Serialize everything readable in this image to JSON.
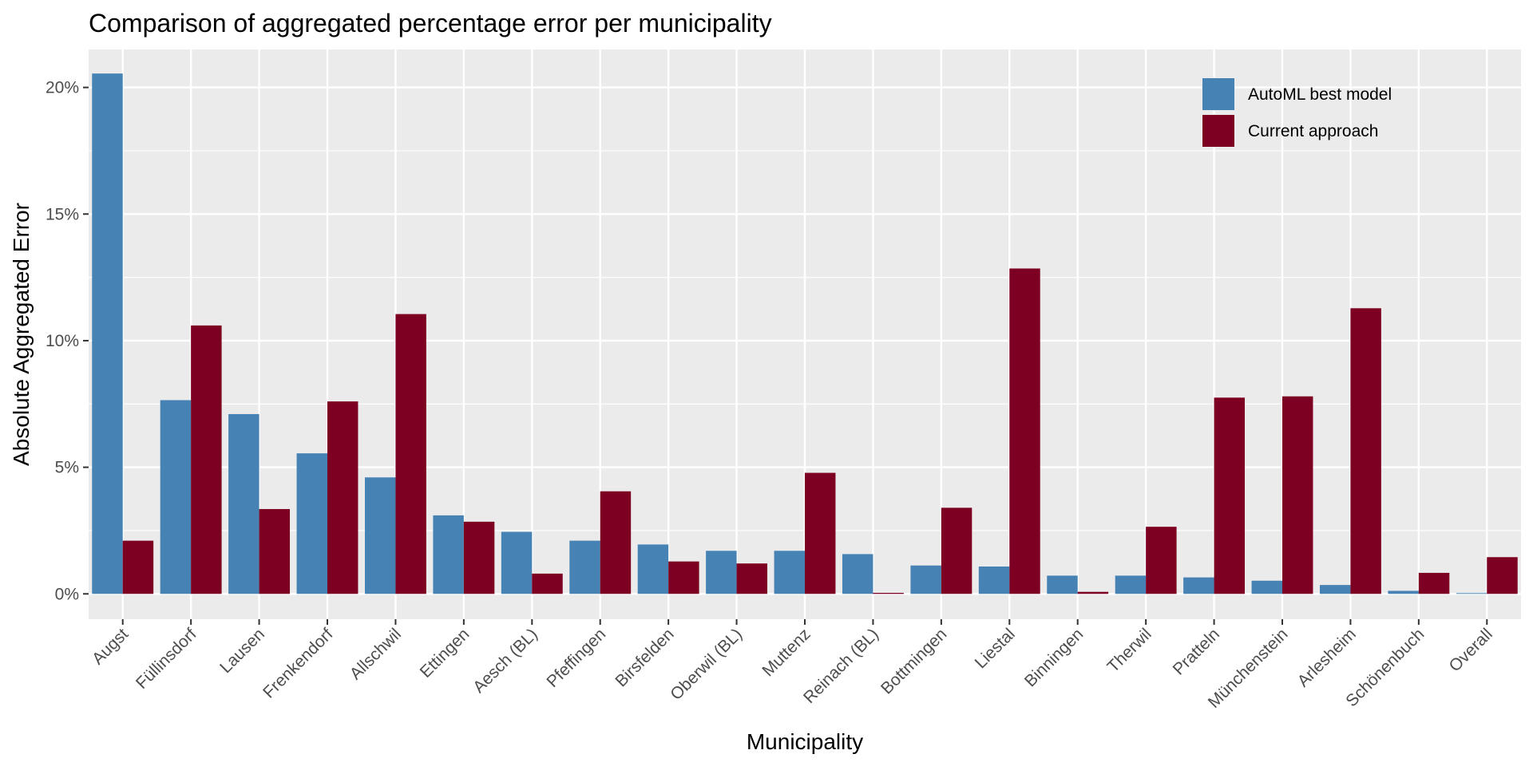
{
  "chart_data": {
    "type": "bar",
    "title": "Comparison of aggregated percentage error per municipality",
    "xlabel": "Municipality",
    "ylabel": "Absolute Aggregated Error",
    "ylim": [
      -0.01,
      0.215
    ],
    "y_ticks": [
      0,
      0.05,
      0.1,
      0.15,
      0.2
    ],
    "y_tick_labels": [
      "0%",
      "5%",
      "10%",
      "15%",
      "20%"
    ],
    "grid": true,
    "legend_position": "top-right",
    "categories": [
      "Augst",
      "Füllinsdorf",
      "Lausen",
      "Frenkendorf",
      "Allschwil",
      "Ettingen",
      "Aesch (BL)",
      "Pfeffingen",
      "Birsfelden",
      "Oberwil (BL)",
      "Muttenz",
      "Reinach (BL)",
      "Bottmingen",
      "Liestal",
      "Binningen",
      "Therwil",
      "Pratteln",
      "Münchenstein",
      "Arlesheim",
      "Schönenbuch",
      "Overall"
    ],
    "series": [
      {
        "name": "AutoML best model",
        "color": "#4682b4",
        "values": [
          0.2055,
          0.0765,
          0.071,
          0.0555,
          0.046,
          0.031,
          0.0245,
          0.021,
          0.0195,
          0.017,
          0.017,
          0.0157,
          0.0112,
          0.0108,
          0.0072,
          0.0072,
          0.0065,
          0.0052,
          0.0035,
          0.0012,
          0.0003
        ]
      },
      {
        "name": "Current approach",
        "color": "#7d0022",
        "values": [
          0.021,
          0.106,
          0.0335,
          0.076,
          0.1105,
          0.0285,
          0.008,
          0.0405,
          0.0128,
          0.012,
          0.0478,
          0.0004,
          0.034,
          0.1285,
          0.0008,
          0.0265,
          0.0775,
          0.078,
          0.1128,
          0.0083,
          0.0145
        ]
      }
    ]
  }
}
